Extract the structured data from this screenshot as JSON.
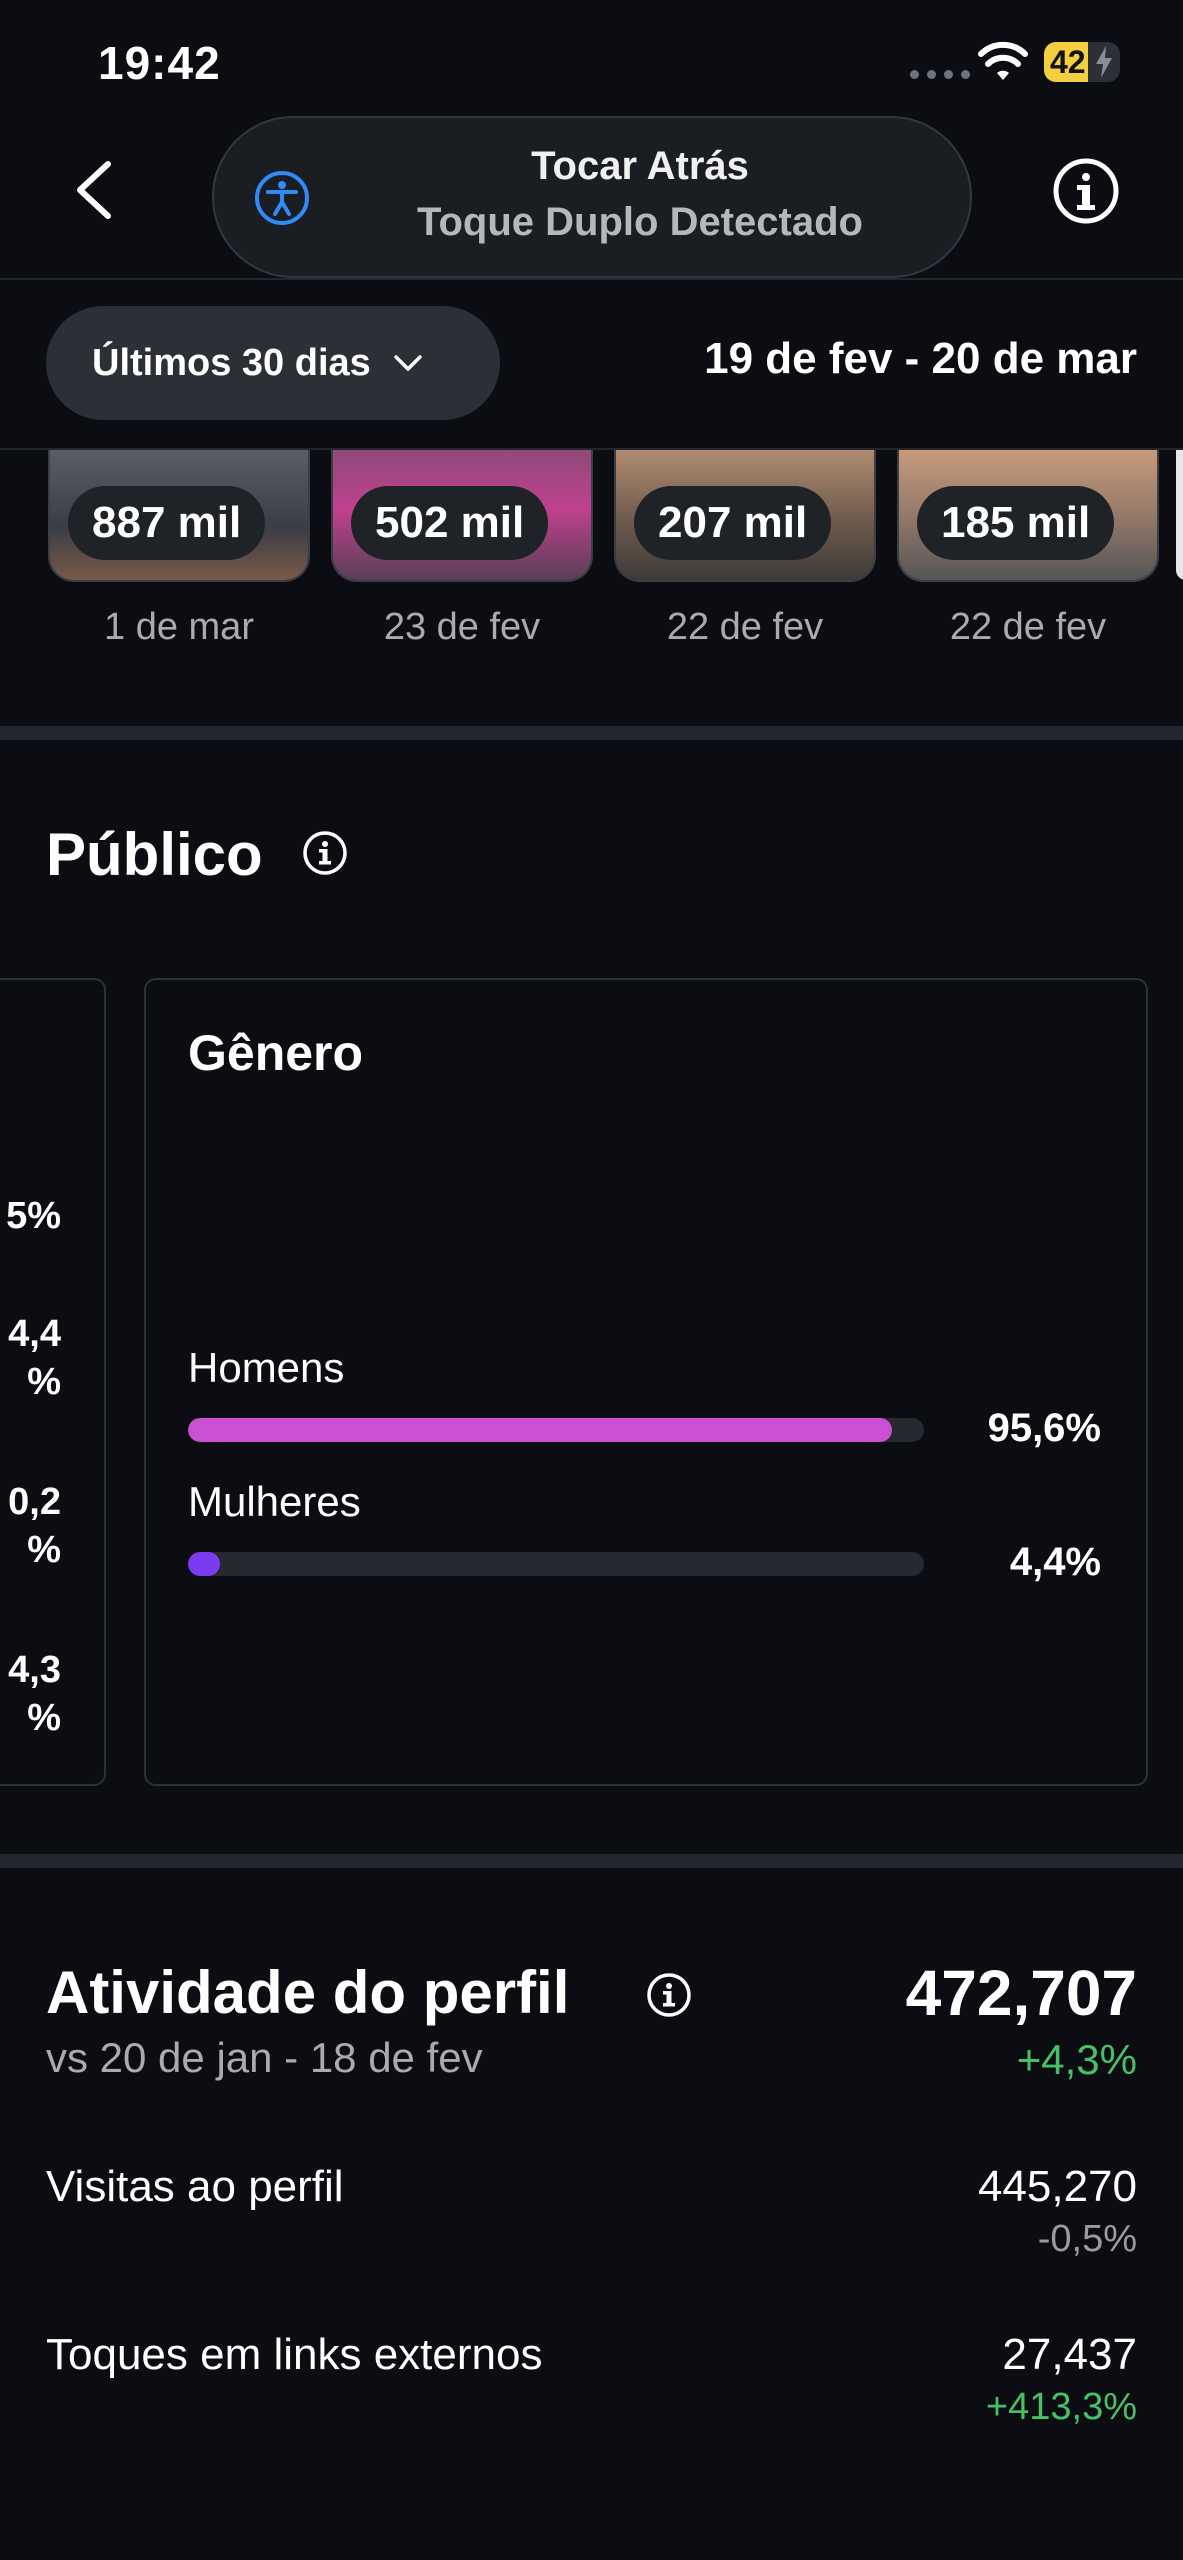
{
  "status_bar": {
    "time": "19:42",
    "battery": "42"
  },
  "overlay": {
    "title": "Tocar Atrás",
    "subtitle": "Toque Duplo Detectado"
  },
  "filter": {
    "period": "Últimos 30 dias",
    "date_range": "19 de fev - 20 de mar"
  },
  "reels": [
    {
      "count": "887 mil",
      "date": "1 de mar"
    },
    {
      "count": "502 mil",
      "date": "23 de fev"
    },
    {
      "count": "207 mil",
      "date": "22 de fev"
    },
    {
      "count": "185 mil",
      "date": "22 de fev"
    }
  ],
  "publico": {
    "title": "Público",
    "left_values": [
      "5%",
      "4,4",
      "%",
      "0,2",
      "%",
      "4,3",
      "%"
    ],
    "gender": {
      "title": "Gênero",
      "items": [
        {
          "label": "Homens",
          "percent": "95,6%",
          "value": 95.6,
          "color": "#c94fd3"
        },
        {
          "label": "Mulheres",
          "percent": "4,4%",
          "value": 4.4,
          "color": "#7b3cf0"
        }
      ]
    }
  },
  "atividade": {
    "title": "Atividade do perfil",
    "compare": "vs 20 de jan - 18 de fev",
    "total": "472,707",
    "change": "+4,3%",
    "rows": [
      {
        "label": "Visitas ao perfil",
        "value": "445,270",
        "change": "-0,5%",
        "change_color": "#9a9ca1"
      },
      {
        "label": "Toques em links externos",
        "value": "27,437",
        "change": "+413,3%",
        "change_color": "#48c066"
      }
    ]
  }
}
